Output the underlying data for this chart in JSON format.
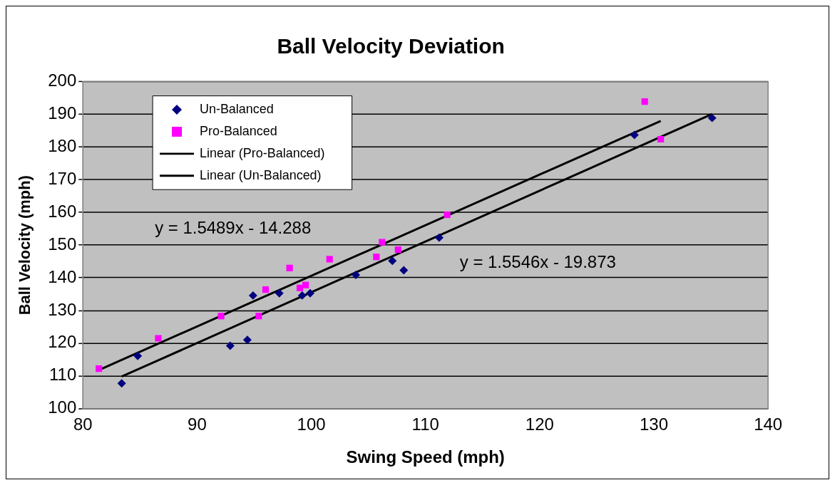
{
  "chart_data": {
    "type": "scatter",
    "title": "Ball Velocity Deviation",
    "xlabel": "Swing Speed (mph)",
    "ylabel": "Ball Velocity (mph)",
    "series": [
      {
        "name": "Un-Balanced",
        "color": "#000080",
        "marker": "diamond",
        "x": [
          83.4,
          84.8,
          92.9,
          94.4,
          94.9,
          97.2,
          99.2,
          99.9,
          103.9,
          107.1,
          108.1,
          111.2,
          128.3,
          135.1
        ],
        "values": [
          107.7,
          116.1,
          119.2,
          121.0,
          134.6,
          135.3,
          134.6,
          135.3,
          140.9,
          145.2,
          142.3,
          152.3,
          183.7,
          188.9
        ]
      },
      {
        "name": "Pro-Balanced",
        "color": "#ff00ff",
        "marker": "square",
        "x": [
          81.4,
          86.6,
          92.1,
          95.4,
          96.0,
          98.1,
          99.0,
          99.5,
          101.6,
          105.7,
          106.2,
          107.6,
          111.9,
          129.2,
          130.6
        ],
        "values": [
          112.2,
          121.5,
          128.3,
          128.3,
          136.4,
          143.0,
          136.9,
          137.8,
          145.7,
          146.4,
          150.9,
          148.6,
          159.3,
          193.9,
          182.4
        ]
      },
      {
        "name": "Linear (Pro-Balanced)",
        "type": "line",
        "color": "#000000",
        "marker": "none",
        "x": [
          81.4,
          130.6
        ],
        "values": [
          111.8,
          188.0
        ]
      },
      {
        "name": "Linear (Un-Balanced)",
        "type": "line",
        "color": "#000000",
        "marker": "none",
        "x": [
          83.4,
          135.1
        ],
        "values": [
          109.8,
          190.1
        ]
      }
    ],
    "xlim": [
      80,
      140
    ],
    "xticks": [
      80,
      90,
      100,
      110,
      120,
      130,
      140
    ],
    "ylim": [
      100,
      200
    ],
    "yticks": [
      100,
      110,
      120,
      130,
      140,
      150,
      160,
      170,
      180,
      190,
      200
    ],
    "grid": "y",
    "legend": "top left",
    "annotations": [
      "y = 1.5489x - 14.288",
      "y = 1.5546x - 19.873"
    ]
  }
}
